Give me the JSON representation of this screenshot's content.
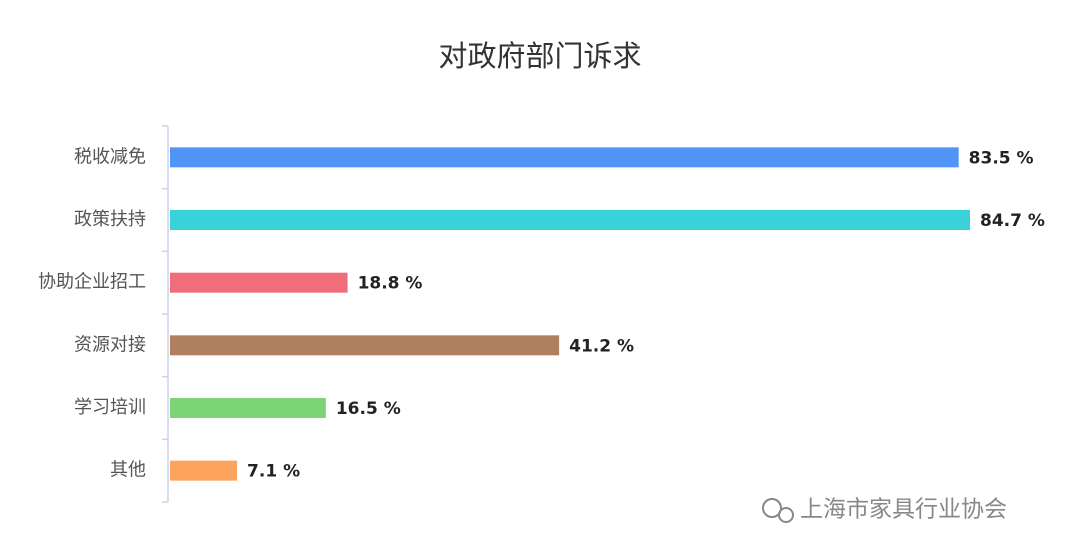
{
  "chart_data": {
    "type": "hbar",
    "title": "对政府部门诉求",
    "categories": [
      "税收减免",
      "政策扶持",
      "协助企业招工",
      "资源对接",
      "学习培训",
      "其他"
    ],
    "values": [
      83.5,
      84.7,
      18.8,
      41.2,
      16.5,
      7.1
    ],
    "value_labels": [
      "83.5 %",
      "84.7 %",
      "18.8 %",
      "41.2 %",
      "16.5 %",
      "7.1 %"
    ],
    "colors": [
      "#5094f8",
      "#3ad2d9",
      "#f06e7a",
      "#b07f5e",
      "#7dd474",
      "#fca35e"
    ]
  },
  "watermark": "上海市家具行业协会"
}
